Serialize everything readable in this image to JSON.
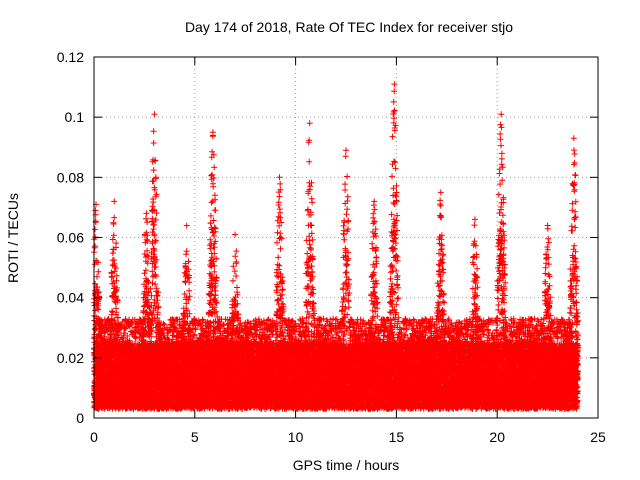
{
  "chart_data": {
    "type": "scatter",
    "title": "Day 174 of 2018, Rate Of TEC Index for receiver stjo",
    "xlabel": "GPS time / hours",
    "ylabel": "ROTI / TECUs",
    "xlim": [
      0,
      25
    ],
    "ylim": [
      0,
      0.12
    ],
    "xticks": [
      0,
      5,
      10,
      15,
      20,
      25
    ],
    "xtick_labels": [
      "0",
      "5",
      "10",
      "15",
      "20",
      "25"
    ],
    "yticks": [
      0,
      0.02,
      0.04,
      0.06,
      0.08,
      0.1,
      0.12
    ],
    "ytick_labels": [
      "0",
      "0.02",
      "0.04",
      "0.06",
      "0.08",
      "0.1",
      "0.12"
    ],
    "grid": true,
    "legend": "none",
    "marker": "+",
    "series": [
      {
        "name": "ROTI",
        "color": "#ff0000",
        "time_range_hours": [
          0,
          24
        ],
        "sample_step_hours": 0.008,
        "satellite_tracks": 8,
        "baseline_roti": 0.012,
        "peaks": [
          {
            "time_hours": 0.1,
            "roti": 0.071
          },
          {
            "time_hours": 1.0,
            "roti": 0.072
          },
          {
            "time_hours": 2.6,
            "roti": 0.068
          },
          {
            "time_hours": 3.0,
            "roti": 0.101
          },
          {
            "time_hours": 4.6,
            "roti": 0.064
          },
          {
            "time_hours": 5.9,
            "roti": 0.095
          },
          {
            "time_hours": 7.0,
            "roti": 0.061
          },
          {
            "time_hours": 9.2,
            "roti": 0.08
          },
          {
            "time_hours": 10.7,
            "roti": 0.098
          },
          {
            "time_hours": 12.5,
            "roti": 0.089
          },
          {
            "time_hours": 13.9,
            "roti": 0.072
          },
          {
            "time_hours": 14.9,
            "roti": 0.111
          },
          {
            "time_hours": 17.2,
            "roti": 0.075
          },
          {
            "time_hours": 18.9,
            "roti": 0.066
          },
          {
            "time_hours": 20.2,
            "roti": 0.101
          },
          {
            "time_hours": 22.5,
            "roti": 0.064
          },
          {
            "time_hours": 23.8,
            "roti": 0.093
          }
        ]
      }
    ]
  }
}
